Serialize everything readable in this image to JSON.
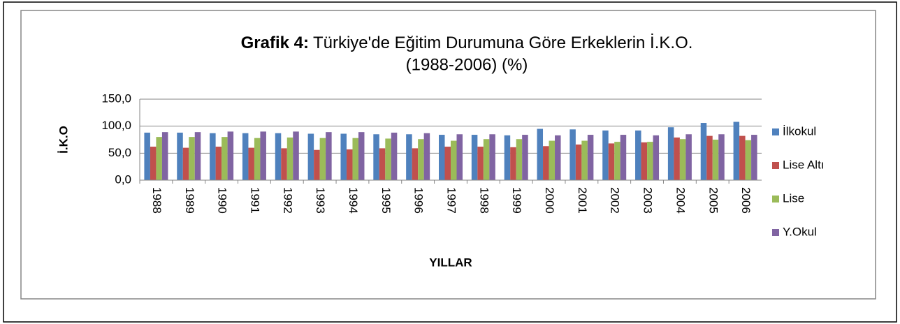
{
  "chart_data": {
    "type": "bar",
    "title_bold": "Grafik 4:",
    "title": "Türkiye'de Eğitim Durumuna Göre Erkeklerin İ.K.O.",
    "subtitle": "(1988-2006) (%)",
    "y_label": "İ.K.O",
    "x_label": "YILLAR",
    "categories": [
      "1988",
      "1989",
      "1990",
      "1991",
      "1992",
      "1993",
      "1994",
      "1995",
      "1996",
      "1997",
      "1998",
      "1999",
      "2000",
      "2001",
      "2002",
      "2003",
      "2004",
      "2005",
      "2006"
    ],
    "series": [
      {
        "name": "İlkokul",
        "color": "#4f81bd",
        "values": [
          88,
          88,
          87,
          87,
          87,
          86,
          86,
          85,
          85,
          84,
          84,
          83,
          95,
          94,
          92,
          92,
          98,
          106,
          108
        ]
      },
      {
        "name": "Lise Altı",
        "color": "#c0504d",
        "values": [
          62,
          60,
          62,
          60,
          59,
          56,
          57,
          59,
          59,
          62,
          62,
          61,
          63,
          66,
          68,
          70,
          79,
          82,
          82
        ]
      },
      {
        "name": "Lise",
        "color": "#9bbb59",
        "values": [
          80,
          80,
          80,
          78,
          79,
          78,
          78,
          77,
          76,
          73,
          76,
          76,
          73,
          73,
          71,
          71,
          76,
          75,
          74
        ]
      },
      {
        "name": "Y.Okul",
        "color": "#8064a2",
        "values": [
          89,
          89,
          90,
          90,
          90,
          89,
          89,
          88,
          87,
          85,
          85,
          84,
          83,
          84,
          84,
          83,
          85,
          85,
          84
        ]
      }
    ],
    "ylim": [
      0,
      150
    ],
    "yticks": [
      {
        "value": 0,
        "label": "0,0"
      },
      {
        "value": 50,
        "label": "50,0"
      },
      {
        "value": 100,
        "label": "100,0"
      },
      {
        "value": 150,
        "label": "150,0"
      }
    ],
    "grid": true,
    "legend": "right"
  }
}
